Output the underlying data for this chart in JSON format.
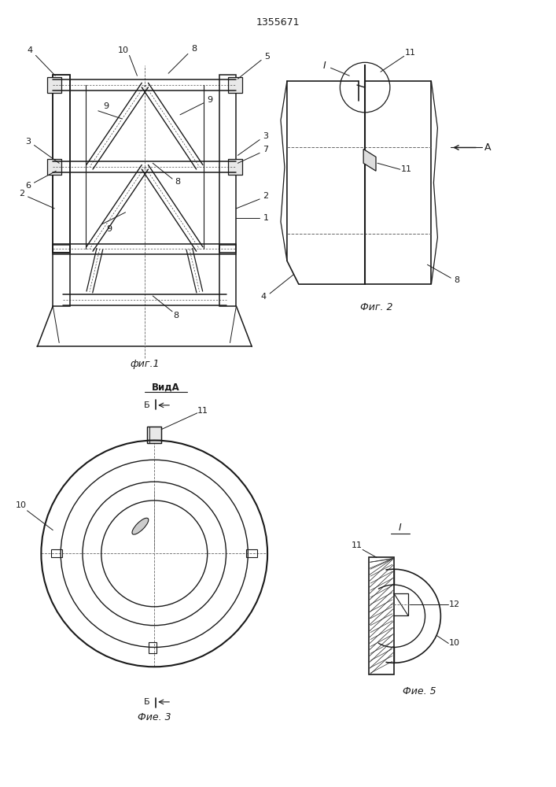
{
  "title": "1355671",
  "bg_color": "#ffffff",
  "lc": "#1a1a1a",
  "fig1_caption": "фиг.1",
  "fig2_caption": "Фиг. 2",
  "fig3_caption": "Фие. 3",
  "fig5_caption": "Фие. 5",
  "view_label": "ВидА"
}
